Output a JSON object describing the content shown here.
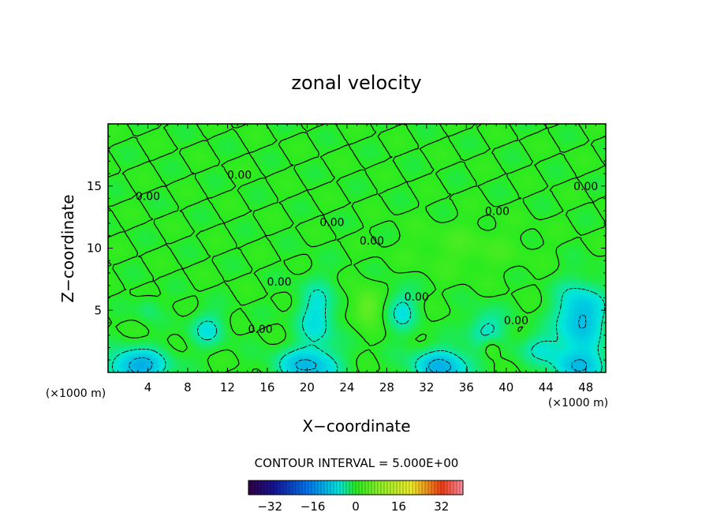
{
  "chart_data": {
    "type": "heatmap",
    "title": "zonal velocity",
    "xlabel": "X−coordinate",
    "ylabel": "Z−coordinate",
    "x_unit_left": "(×1000 m)",
    "x_unit_right": "(×1000 m)",
    "xlim": [
      0,
      50
    ],
    "ylim": [
      0,
      20
    ],
    "xticks": [
      4,
      8,
      12,
      16,
      20,
      24,
      28,
      32,
      36,
      40,
      44,
      48
    ],
    "yticks": [
      5,
      10,
      15
    ],
    "contour_interval_label": "CONTOUR INTERVAL = 5.000E+00",
    "contour_labels": [
      {
        "text": "0.00",
        "x": 13.2,
        "z": 15.9
      },
      {
        "text": "0.00",
        "x": 4.0,
        "z": 14.2
      },
      {
        "text": "0.00",
        "x": 22.5,
        "z": 12.1
      },
      {
        "text": "0.00",
        "x": 26.5,
        "z": 10.6
      },
      {
        "text": "0.00",
        "x": 17.2,
        "z": 7.3
      },
      {
        "text": "0.00",
        "x": 15.3,
        "z": 3.5
      },
      {
        "text": "0.00",
        "x": 31.0,
        "z": 6.1
      },
      {
        "text": "0.00",
        "x": 39.1,
        "z": 13.0
      },
      {
        "text": "0.00",
        "x": 41.0,
        "z": 4.2
      },
      {
        "text": "0.00",
        "x": 48.0,
        "z": 15.0
      }
    ],
    "value_range": [
      -40,
      40
    ],
    "colorbar": {
      "ticks": [
        -32,
        -16,
        0,
        16,
        32
      ],
      "tick_labels": [
        "−32",
        "−16",
        "0",
        "16",
        "32"
      ]
    },
    "field_features": [
      {
        "x": 3.0,
        "z": 0.5,
        "value": -12,
        "rx": 3.0,
        "rz": 1.4
      },
      {
        "x": 20.0,
        "z": 0.5,
        "value": -10,
        "rx": 3.2,
        "rz": 1.4
      },
      {
        "x": 33.5,
        "z": 0.5,
        "value": -11,
        "rx": 3.0,
        "rz": 1.4
      },
      {
        "x": 47.5,
        "z": 0.5,
        "value": -9,
        "rx": 3.0,
        "rz": 1.4
      },
      {
        "x": 47.5,
        "z": 4.5,
        "value": -11,
        "rx": 2.5,
        "rz": 2.6
      },
      {
        "x": 21.0,
        "z": 4.5,
        "value": -7,
        "rx": 2.0,
        "rz": 2.8
      },
      {
        "x": 29.5,
        "z": 5.0,
        "value": -6,
        "rx": 1.6,
        "rz": 1.8
      },
      {
        "x": 10.0,
        "z": 3.5,
        "value": -6,
        "rx": 1.8,
        "rz": 1.4
      },
      {
        "x": 38.0,
        "z": 3.5,
        "value": -6,
        "rx": 2.0,
        "rz": 1.6
      },
      {
        "x": 43.5,
        "z": 2.0,
        "value": -5,
        "rx": 2.4,
        "rz": 1.2
      },
      {
        "x": 26.0,
        "z": 5.3,
        "value": 6,
        "rx": 1.4,
        "rz": 1.4
      },
      {
        "x": 38.5,
        "z": 2.0,
        "value": 5,
        "rx": 1.0,
        "rz": 0.8
      },
      {
        "x": 4.0,
        "z": 5.2,
        "value": -3,
        "rx": 1.2,
        "rz": 1.0
      },
      {
        "x": 36.0,
        "z": 10.0,
        "value": 2,
        "rx": 6.0,
        "rz": 2.0
      }
    ]
  }
}
